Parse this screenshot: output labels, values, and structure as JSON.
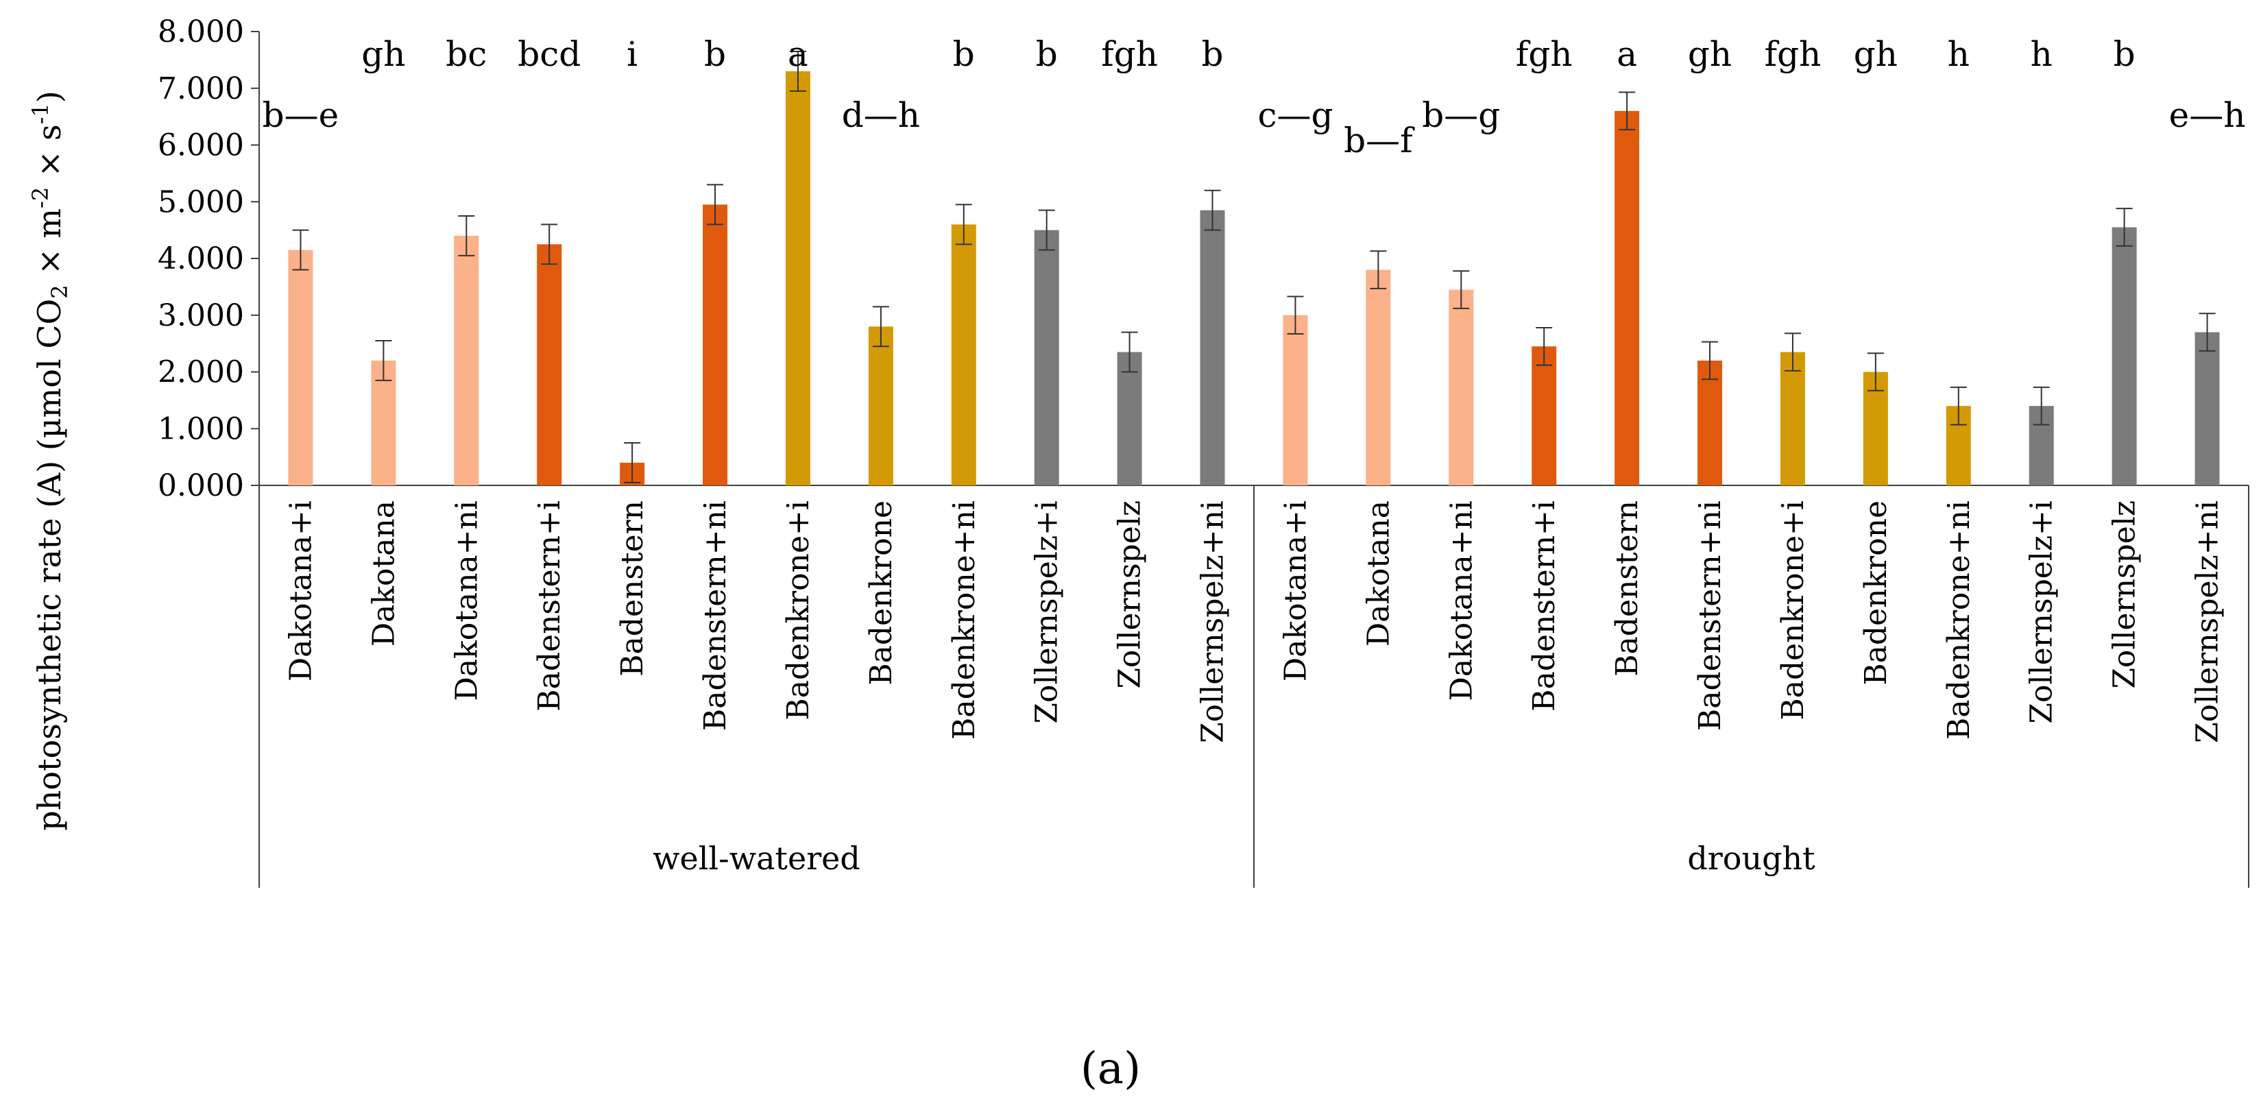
{
  "chart_data": {
    "type": "bar",
    "panel_label": "(a)",
    "ylabel_parts": [
      "photosynthetic rate (A) (µmol CO",
      "2",
      " × m",
      "-2",
      " × s",
      "-1",
      ")"
    ],
    "ylim": [
      0,
      8
    ],
    "yticks": [
      "0.000",
      "1.000",
      "2.000",
      "3.000",
      "4.000",
      "5.000",
      "6.000",
      "7.000",
      "8.000"
    ],
    "groups": [
      {
        "name": "well-watered",
        "categories": [
          "Dakotana+i",
          "Dakotana",
          "Dakotana+ni",
          "Badenstern+i",
          "Badenstern",
          "Badenstern+ni",
          "Badenkrone+i",
          "Badenkrone",
          "Badenkrone+ni",
          "Zollernspelz+i",
          "Zollernspelz",
          "Zollernspelz+ni"
        ],
        "values": [
          4.15,
          2.2,
          4.4,
          4.25,
          0.4,
          4.95,
          7.3,
          2.8,
          4.6,
          4.5,
          2.35,
          4.85
        ],
        "errors": [
          0.35,
          0.35,
          0.35,
          0.35,
          0.35,
          0.35,
          0.35,
          0.35,
          0.35,
          0.35,
          0.35,
          0.35
        ],
        "letters": [
          "b—e",
          "gh",
          "bc",
          "bcd",
          "i",
          "b",
          "a",
          "d—h",
          "b",
          "b",
          "fgh",
          "b"
        ]
      },
      {
        "name": "drought",
        "categories": [
          "Dakotana+i",
          "Dakotana",
          "Dakotana+ni",
          "Badenstern+i",
          "Badenstern",
          "Badenstern+ni",
          "Badenkrone+i",
          "Badenkrone",
          "Badenkrone+ni",
          "Zollernspelz+i",
          "Zollernspelz",
          "Zollernspelz+ni"
        ],
        "values": [
          3.0,
          3.8,
          3.45,
          2.45,
          6.6,
          2.2,
          2.35,
          2.0,
          1.4,
          1.4,
          4.55,
          2.7
        ],
        "errors": [
          0.33,
          0.33,
          0.33,
          0.33,
          0.33,
          0.33,
          0.33,
          0.33,
          0.33,
          0.33,
          0.33,
          0.33
        ],
        "letters": [
          "c—g",
          "b—f",
          "b—g",
          "fgh",
          "a",
          "gh",
          "fgh",
          "gh",
          "h",
          "h",
          "b",
          "e—h"
        ]
      }
    ],
    "cultivar_colors": {
      "Dakotana": "#fbb18a",
      "Badenstern": "#e05a0e",
      "Badenkrone": "#d49a05",
      "Zollernspelz": "#7b7b7b"
    }
  }
}
